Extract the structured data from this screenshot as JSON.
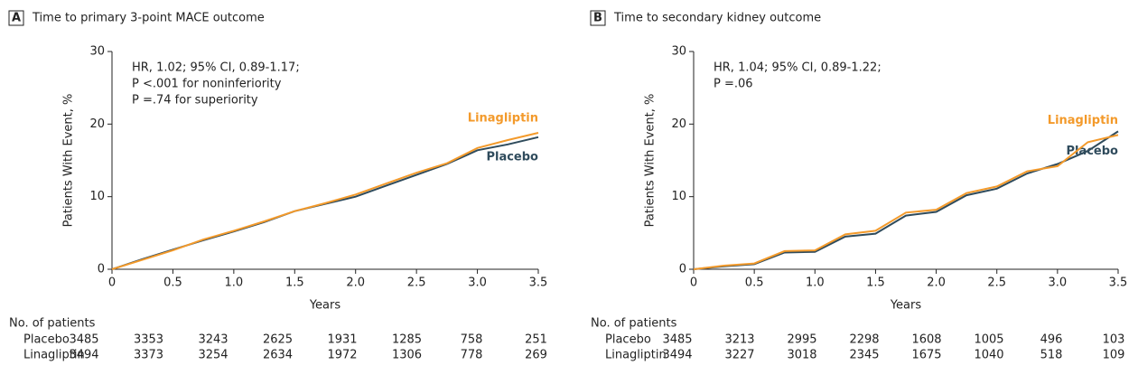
{
  "chart_data": [
    {
      "type": "line",
      "panel": "A",
      "title": "Time to primary 3-point MACE outcome",
      "x_label": "Years",
      "y_label": "Patients With Event, %",
      "annotation": [
        "HR, 1.02; 95% CI, 0.89-1.17;",
        "P <.001 for noninferiority",
        "P =.74 for superiority"
      ],
      "x": [
        0,
        0.25,
        0.5,
        0.75,
        1,
        1.25,
        1.5,
        1.75,
        2,
        2.25,
        2.5,
        2.75,
        3,
        3.25,
        3.5
      ],
      "series": [
        {
          "name": "Placebo",
          "color": "#2f4b5c",
          "values": [
            0,
            1.4,
            2.7,
            4.0,
            5.2,
            6.5,
            8.0,
            9.0,
            10.0,
            11.5,
            13.0,
            14.5,
            16.4,
            17.2,
            18.2
          ]
        },
        {
          "name": "Linagliptin",
          "color": "#f39a2b",
          "values": [
            0,
            1.3,
            2.6,
            4.1,
            5.3,
            6.6,
            8.0,
            9.1,
            10.3,
            11.8,
            13.3,
            14.6,
            16.7,
            17.8,
            18.8
          ]
        }
      ],
      "xlim": [
        0,
        3.5
      ],
      "ylim": [
        0,
        30
      ],
      "xticks": [
        0,
        0.5,
        {
          "value": 1,
          "label": "1.0"
        },
        1.5,
        {
          "value": 2,
          "label": "2.0"
        },
        2.5,
        {
          "value": 3,
          "label": "3.0"
        },
        3.5
      ],
      "yticks": [
        0,
        10,
        20,
        30
      ],
      "risk_table": {
        "title": "No. of patients",
        "rows": [
          {
            "name": "Placebo",
            "values": [
              3485,
              3353,
              3243,
              2625,
              1931,
              1285,
              758,
              251
            ]
          },
          {
            "name": "Linagliptin",
            "values": [
              3494,
              3373,
              3254,
              2634,
              1972,
              1306,
              778,
              269
            ]
          }
        ]
      }
    },
    {
      "type": "line",
      "panel": "B",
      "title": "Time to secondary kidney outcome",
      "x_label": "Years",
      "y_label": "Patients With Event, %",
      "annotation": [
        "HR, 1.04; 95% CI, 0.89-1.22;",
        "P =.06"
      ],
      "x": [
        0,
        0.25,
        0.5,
        0.75,
        1,
        1.25,
        1.5,
        1.75,
        2,
        2.25,
        2.5,
        2.75,
        3,
        3.25,
        3.5
      ],
      "series": [
        {
          "name": "Placebo",
          "color": "#2f4b5c",
          "values": [
            0,
            0.4,
            0.7,
            2.3,
            2.4,
            4.5,
            4.9,
            7.4,
            7.9,
            10.2,
            11.1,
            13.2,
            14.5,
            16.3,
            19.0
          ]
        },
        {
          "name": "Linagliptin",
          "color": "#f39a2b",
          "values": [
            0,
            0.5,
            0.8,
            2.5,
            2.6,
            4.8,
            5.3,
            7.8,
            8.2,
            10.5,
            11.4,
            13.5,
            14.2,
            17.5,
            18.5
          ]
        }
      ],
      "xlim": [
        0,
        3.5
      ],
      "ylim": [
        0,
        30
      ],
      "xticks": [
        0,
        0.5,
        {
          "value": 1,
          "label": "1.0"
        },
        1.5,
        {
          "value": 2,
          "label": "2.0"
        },
        2.5,
        {
          "value": 3,
          "label": "3.0"
        },
        3.5
      ],
      "yticks": [
        0,
        10,
        20,
        30
      ],
      "risk_table": {
        "title": "No. of patients",
        "rows": [
          {
            "name": "Placebo",
            "values": [
              3485,
              3213,
              2995,
              2298,
              1608,
              1005,
              496,
              103
            ]
          },
          {
            "name": "Linagliptin",
            "values": [
              3494,
              3227,
              3018,
              2345,
              1675,
              1040,
              518,
              109
            ]
          }
        ]
      }
    }
  ]
}
